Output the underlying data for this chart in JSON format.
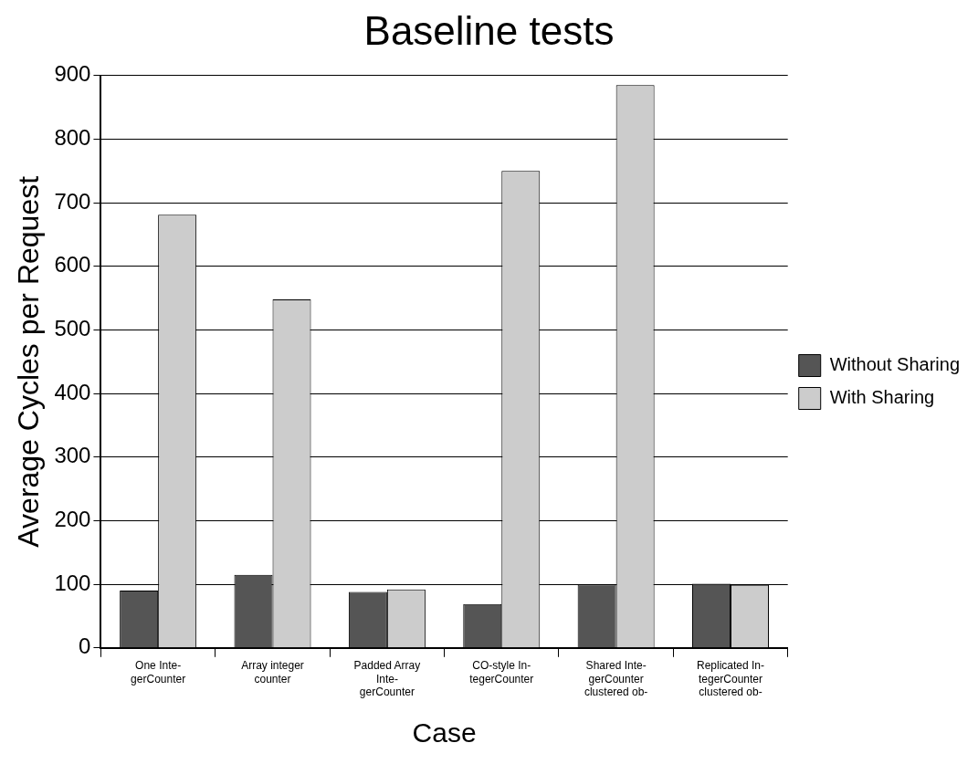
{
  "chart_data": {
    "type": "bar",
    "title": "Baseline tests",
    "xlabel": "Case",
    "ylabel": "Average Cycles per Request",
    "categories": [
      "One Inte-\ngerCounter",
      "Array integer\ncounter",
      "Padded Array\nInte-\ngerCounter",
      "CO-style In-\ntegerCounter",
      "Shared Inte-\ngerCounter\nclustered ob-",
      "Replicated In-\ntegerCounter\nclustered ob-"
    ],
    "series": [
      {
        "name": "Without Sharing",
        "color": "#555555",
        "values": [
          90,
          115,
          88,
          69,
          100,
          101
        ]
      },
      {
        "name": "With Sharing",
        "color": "#cccccc",
        "values": [
          681,
          548,
          92,
          750,
          885,
          99
        ]
      }
    ],
    "ylim": [
      0,
      900
    ],
    "yticks": [
      0,
      100,
      200,
      300,
      400,
      500,
      600,
      700,
      800,
      900
    ],
    "grid": "y",
    "legend": "right"
  }
}
